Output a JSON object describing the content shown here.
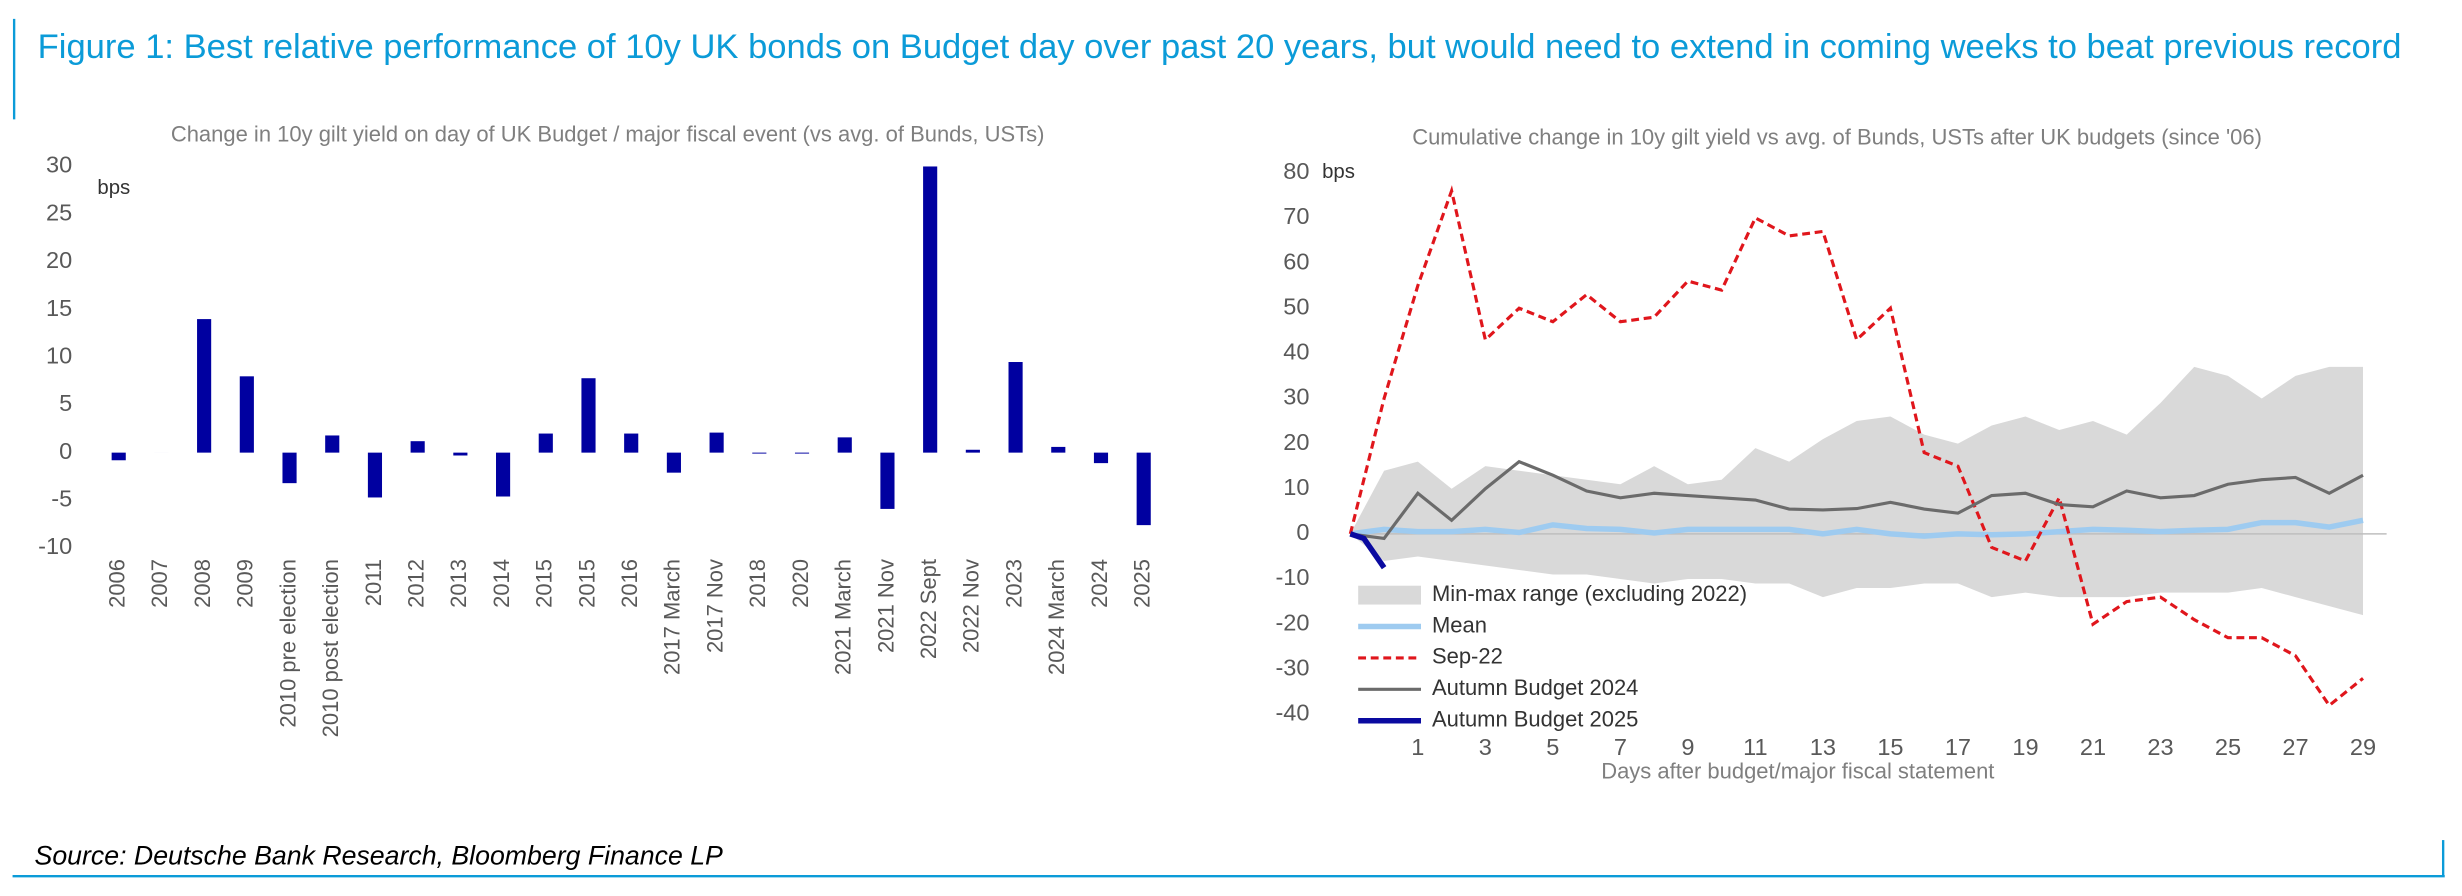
{
  "title": "Figure 1:  Best relative performance of 10y UK bonds on Budget day over past 20 years, but would need to extend in coming weeks to beat previous record",
  "source": "Source: Deutsche Bank Research, Bloomberg Finance LP",
  "chart_data": [
    {
      "type": "bar",
      "title": "Change in 10y gilt yield on day of UK Budget / major fiscal event (vs avg. of Bunds, USTs)",
      "y_label": "bps",
      "categories": [
        "2006",
        "2007",
        "2008",
        "2009",
        "2010 pre election",
        "2010 post election",
        "2011",
        "2012",
        "2013",
        "2014",
        "2015",
        "2015",
        "2016",
        "2017 March",
        "2017 Nov",
        "2018",
        "2020",
        "2021 March",
        "2021 Nov",
        "2022 Sept",
        "2022 Nov",
        "2023",
        "2024 March",
        "2024",
        "2025"
      ],
      "values": [
        -0.8,
        0,
        14,
        8,
        -3.2,
        1.8,
        -4.7,
        1.2,
        -0.3,
        -4.6,
        2,
        7.8,
        2,
        -2.1,
        2.1,
        -0.1,
        -0.1,
        1.6,
        -5.9,
        30,
        0.3,
        9.5,
        0.6,
        -1.1,
        -7.6
      ],
      "color": "#0000a0",
      "ylim": [
        -10,
        30
      ],
      "yticks": [
        -10,
        -5,
        0,
        5,
        10,
        15,
        20,
        25,
        30
      ]
    },
    {
      "type": "line",
      "title": "Cumulative change in 10y gilt yield vs avg. of Bunds, USTs after UK budgets (since '06)",
      "y_label": "bps",
      "x_label": "Days after budget/major fiscal statement",
      "x": [
        -1,
        0,
        1,
        2,
        3,
        4,
        5,
        6,
        7,
        8,
        9,
        10,
        11,
        12,
        13,
        14,
        15,
        16,
        17,
        18,
        19,
        20,
        21,
        22,
        23,
        24,
        25,
        26,
        27,
        28,
        29
      ],
      "band": {
        "name": "Min-max range (excluding 2022)",
        "color": "#d9d9d9",
        "upper": [
          0,
          14,
          16,
          10,
          15,
          14,
          13,
          12,
          11,
          15,
          11,
          12,
          19,
          16,
          21,
          25,
          26,
          22,
          20,
          24,
          26,
          23,
          25,
          22,
          29,
          37,
          35,
          30,
          35,
          37,
          37
        ],
        "lower": [
          0,
          -6,
          -5,
          -6,
          -7,
          -8,
          -9,
          -9,
          -10,
          -11,
          -10,
          -10,
          -11,
          -11,
          -14,
          -12,
          -12,
          -11,
          -11,
          -14,
          -13,
          -14,
          -14,
          -14,
          -13,
          -13,
          -13,
          -12,
          -14,
          -16,
          -18
        ]
      },
      "series": [
        {
          "name": "Mean",
          "color": "#9ecbf0",
          "width": 3.5,
          "dash": "none",
          "values": [
            0,
            1,
            0.5,
            0.5,
            1,
            0.3,
            2,
            1.2,
            1,
            0.2,
            1,
            1,
            1,
            1,
            0,
            1,
            0,
            -0.5,
            0,
            -0.2,
            0,
            0.5,
            1,
            0.8,
            0.5,
            0.8,
            1,
            2.5,
            2.5,
            1.5,
            3
          ]
        },
        {
          "name": "Sep-22",
          "color": "#e0161c",
          "width": 2,
          "dash": "5,3",
          "values": [
            0,
            30,
            55,
            76,
            43,
            50,
            47,
            53,
            47,
            48,
            56,
            54,
            70,
            66,
            67,
            43,
            50,
            18,
            15,
            -3,
            -6,
            8,
            -20,
            -15,
            -14,
            -19,
            -23,
            -23,
            -27,
            -38,
            -32
          ]
        },
        {
          "name": "Autumn Budget 2024",
          "color": "#6b6b6b",
          "width": 2,
          "dash": "none",
          "values": [
            0,
            -1,
            9,
            3,
            10,
            16,
            13,
            9.5,
            8,
            9,
            8.5,
            8,
            7.5,
            5.5,
            5.3,
            5.6,
            7,
            5.5,
            4.6,
            8.5,
            9,
            6.5,
            6,
            9.5,
            8,
            8.5,
            11,
            12,
            12.5,
            9,
            13
          ]
        },
        {
          "name": "Autumn Budget 2025",
          "color": "#0a0aa0",
          "width": 3.5,
          "dash": "none",
          "x": [
            -1,
            -0.6,
            0
          ],
          "values": [
            0,
            -1,
            -7.5
          ]
        }
      ],
      "xlim": [
        -1,
        29.7
      ],
      "xticks": [
        1,
        3,
        5,
        7,
        9,
        11,
        13,
        15,
        17,
        19,
        21,
        23,
        25,
        27,
        29
      ],
      "ylim": [
        -40,
        80
      ],
      "yticks": [
        -40,
        -30,
        -20,
        -10,
        0,
        10,
        20,
        30,
        40,
        50,
        60,
        70,
        80
      ]
    }
  ]
}
